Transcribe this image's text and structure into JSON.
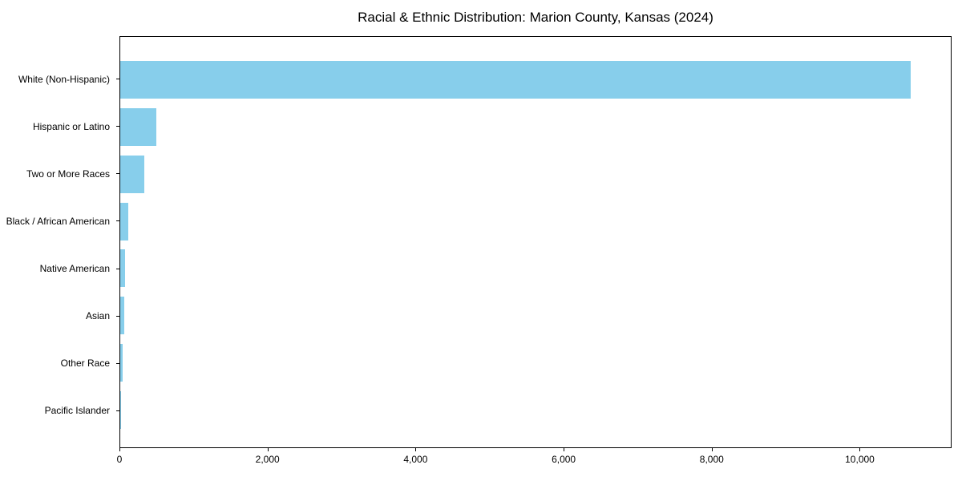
{
  "chart_data": {
    "type": "bar",
    "orientation": "horizontal",
    "title": "Racial & Ethnic Distribution: Marion County, Kansas (2024)",
    "categories": [
      "White (Non-Hispanic)",
      "Hispanic or Latino",
      "Two or More Races",
      "Black / African American",
      "Native American",
      "Asian",
      "Other Race",
      "Pacific Islander"
    ],
    "values": [
      10700,
      490,
      330,
      110,
      62,
      55,
      30,
      5
    ],
    "bar_color": "#87ceeb",
    "xlabel": "",
    "ylabel": "",
    "xlim": [
      0,
      11240
    ],
    "x_ticks": [
      0,
      2000,
      4000,
      6000,
      8000,
      10000
    ],
    "x_tick_labels": [
      "0",
      "2,000",
      "4,000",
      "6,000",
      "8,000",
      "10,000"
    ],
    "grid": false,
    "legend": null
  }
}
